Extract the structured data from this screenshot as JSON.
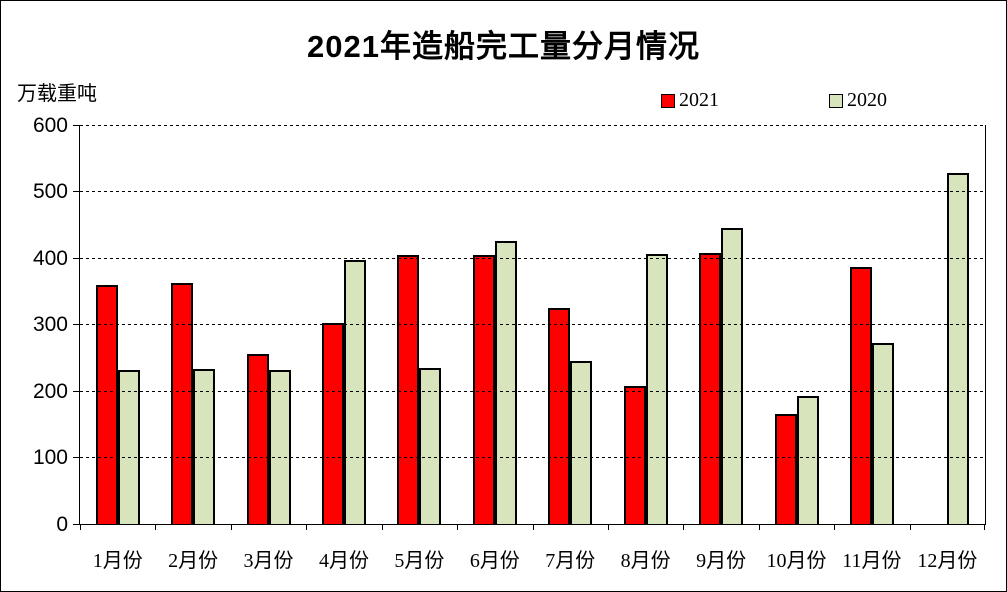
{
  "chart_data": {
    "type": "bar",
    "title": "2021年造船完工量分月情况",
    "unit_label": "万载重吨",
    "categories": [
      "1月份",
      "2月份",
      "3月份",
      "4月份",
      "5月份",
      "6月份",
      "7月份",
      "8月份",
      "9月份",
      "10月份",
      "11月份",
      "12月份"
    ],
    "series": [
      {
        "name": "2021",
        "color": "#FF0000",
        "values": [
          360,
          362,
          255,
          302,
          405,
          405,
          325,
          208,
          408,
          165,
          386,
          0
        ]
      },
      {
        "name": "2020",
        "color": "#D8E4BC",
        "values": [
          232,
          233,
          232,
          397,
          234,
          426,
          245,
          406,
          445,
          192,
          272,
          528
        ]
      }
    ],
    "ylabel": "",
    "xlabel": "",
    "ylim": [
      0,
      600
    ],
    "y_tick_step": 100,
    "grid": "horizontal-dashed",
    "legend_position": "top-right",
    "bar_outline_color": "#000000",
    "note": "no 2021 bar shown for 12月份"
  }
}
